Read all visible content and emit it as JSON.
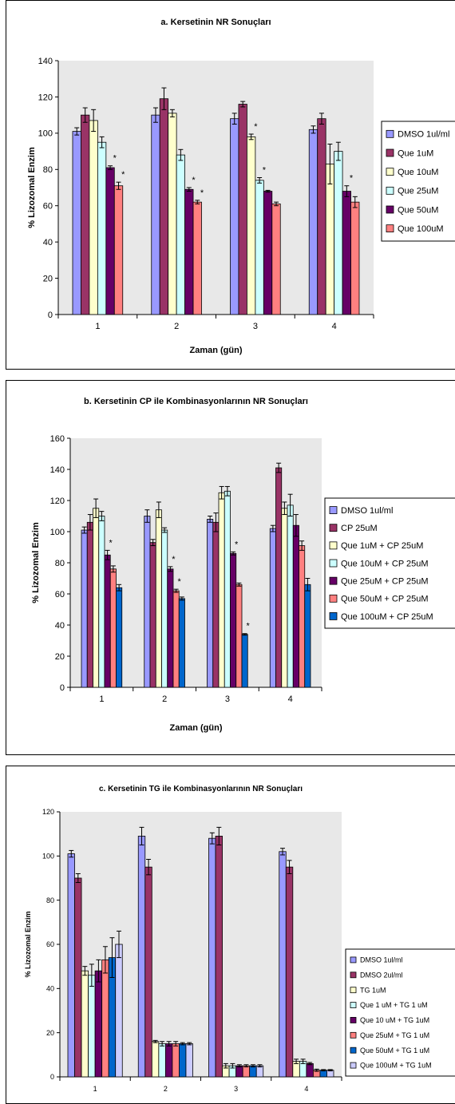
{
  "chart_data": [
    {
      "type": "bar",
      "title": "a. Kersetinin NR Sonuçları",
      "xlabel": "Zaman (gün)",
      "ylabel": "% Lizozomal Enzim",
      "ylim": [
        0,
        140
      ],
      "yticks": [
        0,
        20,
        40,
        60,
        80,
        100,
        120,
        140
      ],
      "grid": false,
      "legend_position": "right",
      "categories": [
        "1",
        "2",
        "3",
        "4"
      ],
      "series": [
        {
          "name": "DMSO 1ul/ml",
          "color": "#9999FF",
          "values": [
            101,
            110,
            108,
            102
          ],
          "errors": [
            2,
            4,
            3,
            2
          ],
          "stars": [
            false,
            false,
            false,
            false
          ]
        },
        {
          "name": "Que 1uM",
          "color": "#993366",
          "values": [
            110,
            119,
            116,
            108
          ],
          "errors": [
            4,
            6,
            1.5,
            3
          ],
          "stars": [
            false,
            false,
            false,
            false
          ]
        },
        {
          "name": "Que 10uM",
          "color": "#FFFFCC",
          "values": [
            107,
            111,
            98,
            83
          ],
          "errors": [
            6,
            2,
            1.5,
            11
          ],
          "stars": [
            false,
            false,
            true,
            false
          ]
        },
        {
          "name": "Que 25uM",
          "color": "#CCFFFF",
          "values": [
            95,
            88,
            74,
            90
          ],
          "errors": [
            3,
            3,
            1.5,
            5
          ],
          "stars": [
            false,
            false,
            true,
            false
          ]
        },
        {
          "name": "Que 50uM",
          "color": "#660066",
          "values": [
            81,
            69,
            68,
            68
          ],
          "errors": [
            1,
            1,
            0.5,
            3
          ],
          "stars": [
            true,
            true,
            false,
            true
          ]
        },
        {
          "name": "Que 100uM",
          "color": "#FF8080",
          "values": [
            71,
            62,
            61,
            62
          ],
          "errors": [
            2,
            1,
            1,
            3
          ],
          "stars": [
            true,
            true,
            false,
            false
          ]
        }
      ]
    },
    {
      "type": "bar",
      "title": "b. Kersetinin CP ile Kombinasyonlarının NR Sonuçları",
      "xlabel": "Zaman (gün)",
      "ylabel": "% Lizozomal Enzim",
      "ylim": [
        0,
        160
      ],
      "yticks": [
        0,
        20,
        40,
        60,
        80,
        100,
        120,
        140,
        160
      ],
      "grid": false,
      "legend_position": "right",
      "categories": [
        "1",
        "2",
        "3",
        "4"
      ],
      "series": [
        {
          "name": "DMSO 1ul/ml",
          "color": "#9999FF",
          "values": [
            101,
            110,
            108,
            102
          ],
          "errors": [
            2,
            4,
            2,
            2
          ],
          "stars": [
            false,
            false,
            false,
            false
          ]
        },
        {
          "name": "CP 25uM",
          "color": "#993366",
          "values": [
            106,
            93,
            106,
            141
          ],
          "errors": [
            5,
            2,
            6,
            3
          ],
          "stars": [
            false,
            false,
            false,
            false
          ]
        },
        {
          "name": "Que 1uM + CP 25uM",
          "color": "#FFFFCC",
          "values": [
            115,
            114,
            125,
            115
          ],
          "errors": [
            6,
            5,
            4,
            4
          ],
          "stars": [
            false,
            false,
            false,
            false
          ]
        },
        {
          "name": "Que 10uM + CP 25uM",
          "color": "#CCFFFF",
          "values": [
            110,
            101,
            126,
            117
          ],
          "errors": [
            3,
            1.5,
            3,
            7
          ],
          "stars": [
            false,
            false,
            false,
            false
          ]
        },
        {
          "name": "Que 25uM + CP 25uM",
          "color": "#660066",
          "values": [
            85,
            76,
            86,
            104
          ],
          "errors": [
            3,
            1.5,
            1,
            7
          ],
          "stars": [
            true,
            true,
            true,
            false
          ]
        },
        {
          "name": "Que 50uM + CP 25uM",
          "color": "#FF8080",
          "values": [
            76,
            62,
            66,
            91
          ],
          "errors": [
            2,
            1,
            1,
            3
          ],
          "stars": [
            false,
            true,
            false,
            false
          ]
        },
        {
          "name": "Que 100uM + CP 25uM",
          "color": "#0066CC",
          "values": [
            64,
            57,
            34,
            66
          ],
          "errors": [
            2,
            1,
            0.5,
            4
          ],
          "stars": [
            false,
            false,
            true,
            false
          ]
        }
      ]
    },
    {
      "type": "bar",
      "title": "c. Kersetinin TG ile Kombinasyonlarının NR Sonuçları",
      "xlabel": "Zaman (gün)",
      "ylabel": "% Lizozomal Enzim",
      "ylim": [
        0,
        120
      ],
      "yticks": [
        0,
        20,
        40,
        60,
        80,
        100,
        120
      ],
      "grid": false,
      "legend_position": "right",
      "categories": [
        "1",
        "2",
        "3",
        "4"
      ],
      "series": [
        {
          "name": "DMSO 1ul/ml",
          "color": "#9999FF",
          "values": [
            101,
            109,
            108,
            102
          ],
          "errors": [
            1.5,
            4,
            2.5,
            1.5
          ],
          "stars": [
            false,
            false,
            false,
            false
          ]
        },
        {
          "name": "DMSO 2ul/ml",
          "color": "#993366",
          "values": [
            90,
            95,
            109,
            95
          ],
          "errors": [
            2,
            3.5,
            4,
            3
          ],
          "stars": [
            false,
            false,
            false,
            false
          ]
        },
        {
          "name": "TG 1uM",
          "color": "#FFFFCC",
          "values": [
            48,
            16,
            5,
            7
          ],
          "errors": [
            2,
            0.5,
            1,
            1
          ],
          "stars": [
            false,
            false,
            false,
            false
          ]
        },
        {
          "name": "Que 1 uM + TG 1 uM",
          "color": "#CCFFFF",
          "values": [
            46,
            15,
            5,
            7
          ],
          "errors": [
            5,
            1,
            1,
            1
          ],
          "stars": [
            false,
            false,
            false,
            false
          ]
        },
        {
          "name": "Que 10 uM + TG 1uM",
          "color": "#660066",
          "values": [
            48,
            15,
            5,
            6
          ],
          "errors": [
            5,
            1,
            0.5,
            0.5
          ],
          "stars": [
            false,
            false,
            false,
            false
          ]
        },
        {
          "name": "Que 25uM + TG 1 uM",
          "color": "#FF8080",
          "values": [
            53,
            15,
            5,
            3
          ],
          "errors": [
            6,
            1,
            0.5,
            0.5
          ],
          "stars": [
            false,
            false,
            false,
            false
          ]
        },
        {
          "name": "Que 50uM + TG 1 uM",
          "color": "#0066CC",
          "values": [
            54,
            15,
            5,
            3
          ],
          "errors": [
            9,
            0.5,
            0.5,
            0.3
          ],
          "stars": [
            false,
            false,
            false,
            false
          ]
        },
        {
          "name": "Que 100uM + TG 1uM",
          "color": "#CCCCFF",
          "values": [
            60,
            15,
            5,
            3
          ],
          "errors": [
            6,
            0.5,
            0.5,
            0.3
          ],
          "stars": [
            false,
            false,
            false,
            false
          ]
        }
      ]
    }
  ]
}
